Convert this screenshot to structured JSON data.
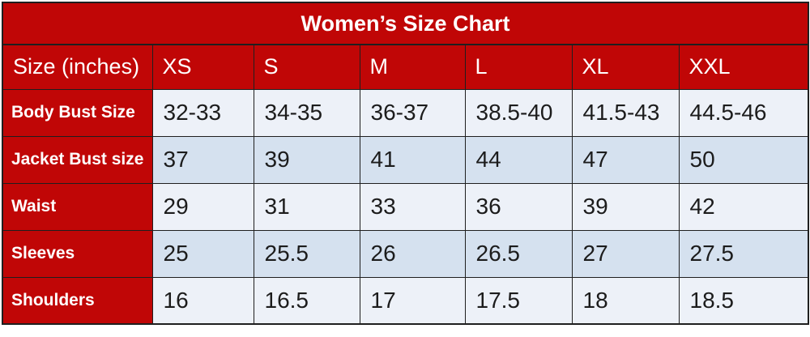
{
  "colors": {
    "table_red": "#c00606",
    "border_dark": "#1f1f1f",
    "row_light_bg": "#edf1f8",
    "row_shaded_bg": "#d5e1ef",
    "title_text": "#ffffff",
    "data_text": "#1c1c1c"
  },
  "chart_data": {
    "type": "table",
    "title": "Women’s Size Chart",
    "columns": [
      "Size (inches)",
      "XS",
      "S",
      "M",
      "L",
      "XL",
      "XXL"
    ],
    "rows": [
      {
        "label": "Body Bust Size",
        "values": [
          "32-33",
          "34-35",
          "36-37",
          "38.5-40",
          "41.5-43",
          "44.5-46"
        ]
      },
      {
        "label": "Jacket Bust size",
        "values": [
          "37",
          "39",
          "41",
          "44",
          "47",
          "50"
        ]
      },
      {
        "label": "Waist",
        "values": [
          "29",
          "31",
          "33",
          "36",
          "39",
          "42"
        ]
      },
      {
        "label": "Sleeves",
        "values": [
          "25",
          "25.5",
          "26",
          "26.5",
          "27",
          "27.5"
        ]
      },
      {
        "label": "Shoulders",
        "values": [
          "16",
          "16.5",
          "17",
          "17.5",
          "18",
          "18.5"
        ]
      }
    ]
  }
}
